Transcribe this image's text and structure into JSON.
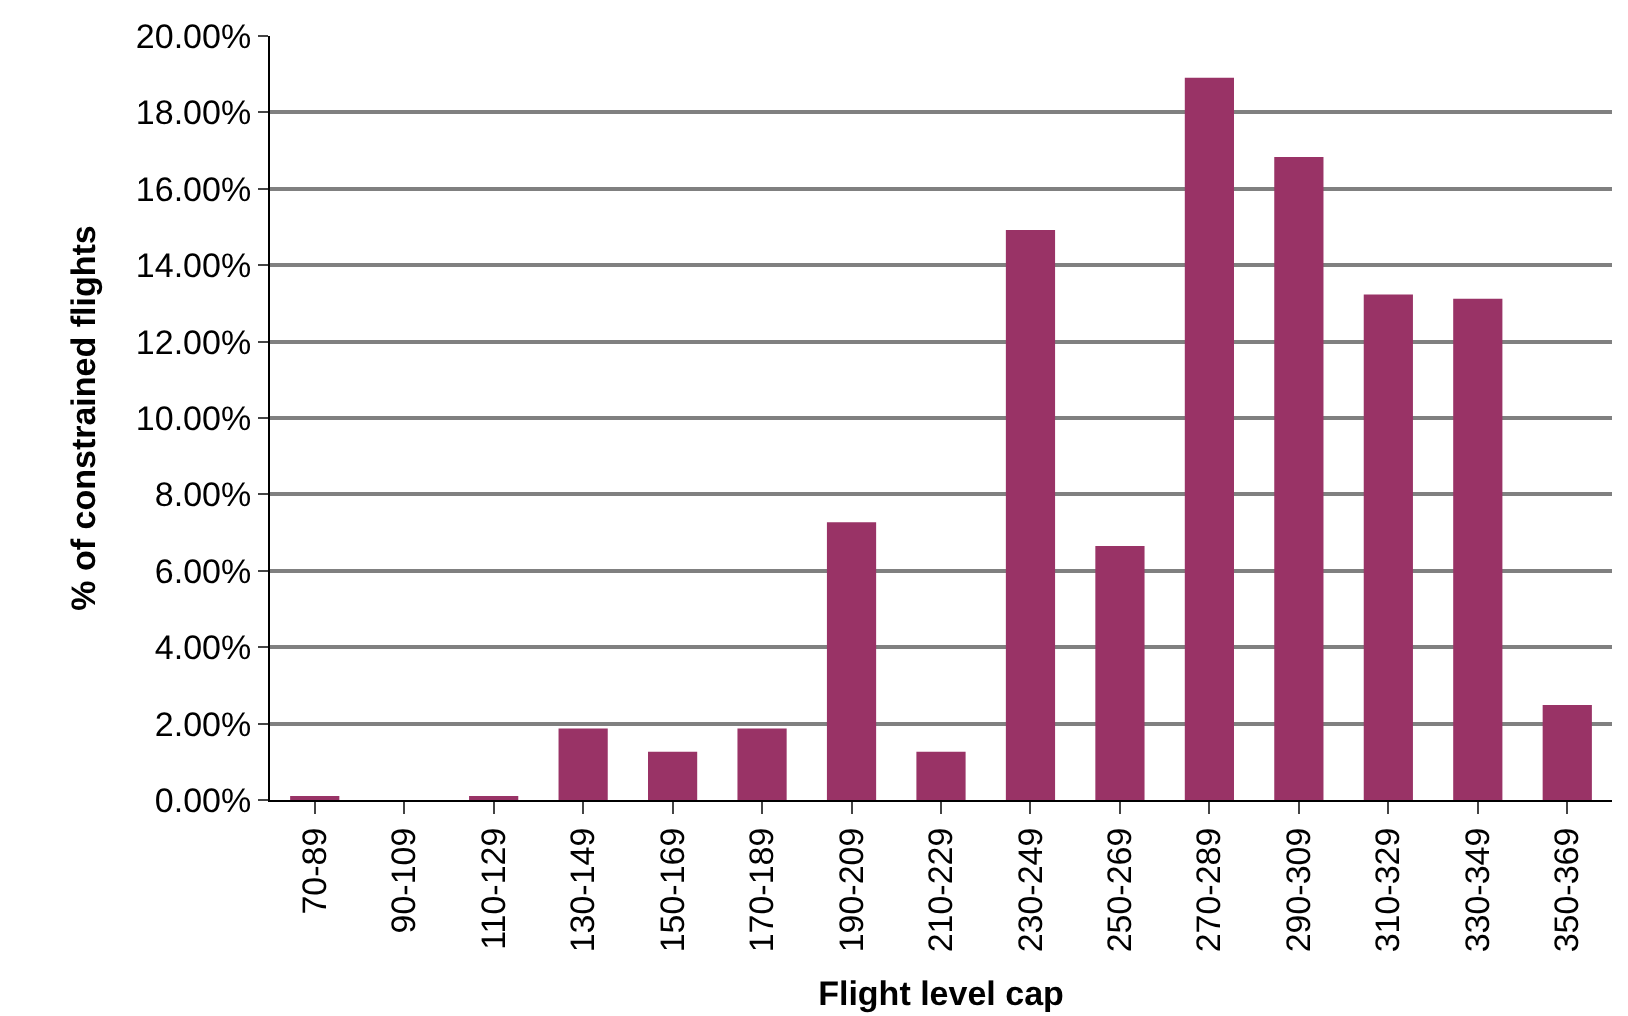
{
  "chart_data": {
    "type": "bar",
    "xlabel": "Flight level cap",
    "ylabel": "% of constrained flights",
    "categories": [
      "70-89",
      "90-109",
      "110-129",
      "130-149",
      "150-169",
      "170-189",
      "190-209",
      "210-229",
      "230-249",
      "250-269",
      "270-289",
      "290-309",
      "310-329",
      "330-349",
      "350-369"
    ],
    "values": [
      0.1,
      0,
      0.1,
      1.87,
      1.26,
      1.87,
      7.27,
      1.26,
      14.92,
      6.65,
      18.91,
      16.83,
      13.23,
      13.12,
      2.49
    ],
    "color": "#993366",
    "ylim": [
      0,
      20
    ],
    "yticks": [
      {
        "value": 0,
        "label": "0.00%"
      },
      {
        "value": 2,
        "label": "2.00%"
      },
      {
        "value": 4,
        "label": "4.00%"
      },
      {
        "value": 6,
        "label": "6.00%"
      },
      {
        "value": 8,
        "label": "8.00%"
      },
      {
        "value": 10,
        "label": "10.00%"
      },
      {
        "value": 12,
        "label": "12.00%"
      },
      {
        "value": 14,
        "label": "14.00%"
      },
      {
        "value": 16,
        "label": "16.00%"
      },
      {
        "value": 18,
        "label": "18.00%"
      },
      {
        "value": 20,
        "label": "20.00%"
      }
    ],
    "grid": "y"
  }
}
